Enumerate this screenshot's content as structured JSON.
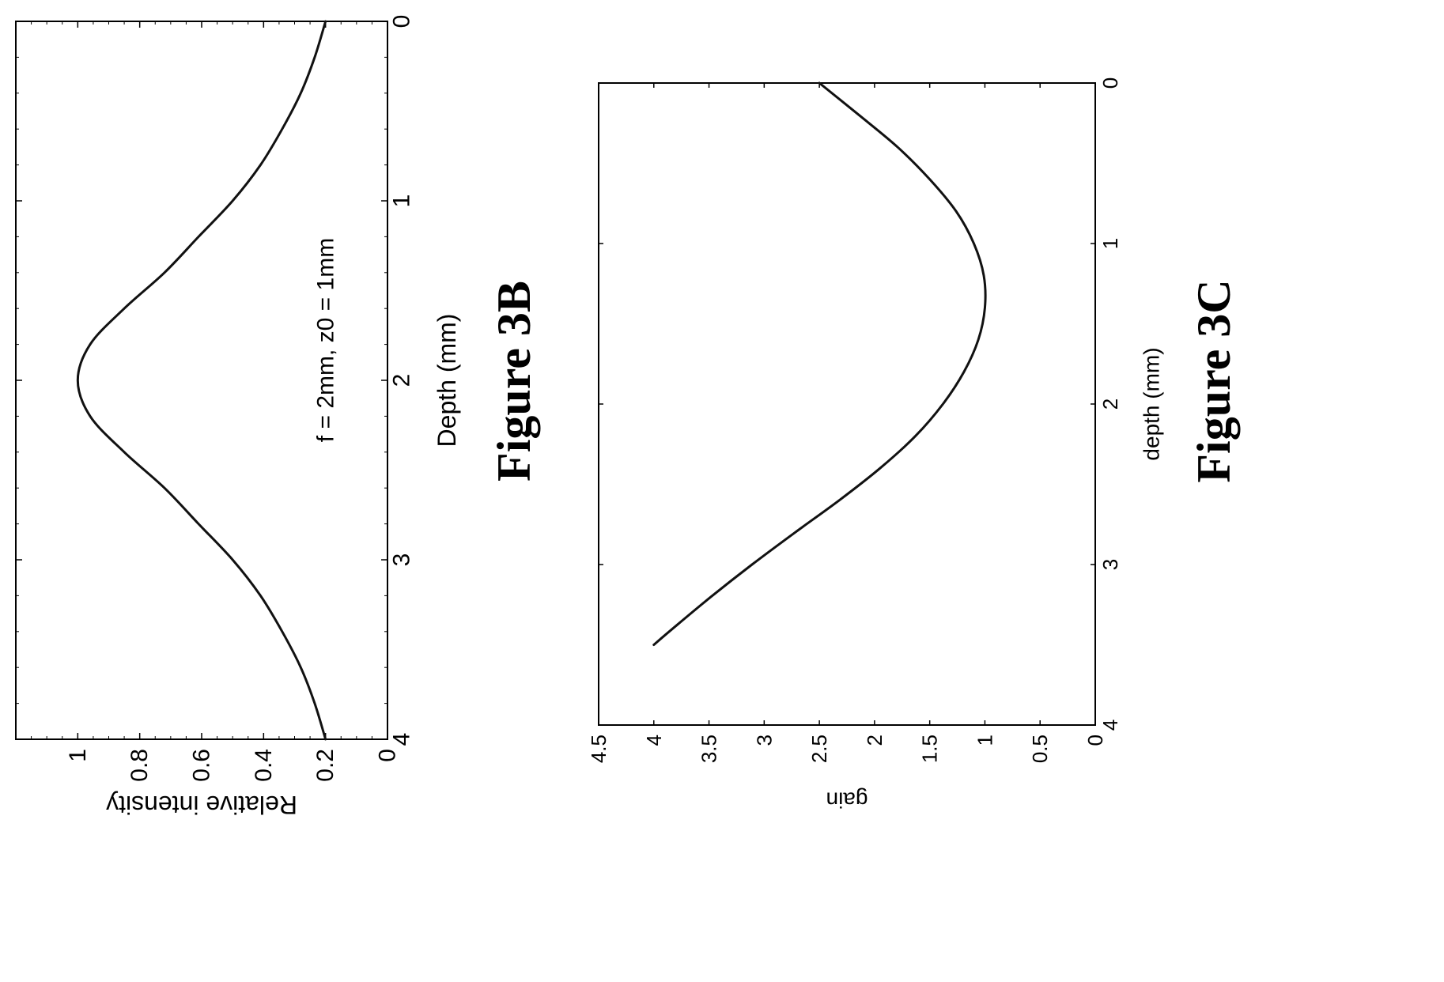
{
  "chart_data": [
    {
      "type": "line",
      "figure_label": "Figure 3B",
      "title": "",
      "xlabel": "Depth (mm)",
      "ylabel": "Relative intensity",
      "xlim": [
        0,
        4
      ],
      "ylim": [
        0,
        1.2
      ],
      "xticks": [
        0,
        1,
        2,
        3,
        4
      ],
      "yticks": [
        0,
        0.2,
        0.4,
        0.6,
        0.8,
        1
      ],
      "xtick_labels": [
        "0",
        "1",
        "2",
        "3",
        "4"
      ],
      "ytick_labels": [
        "0",
        "0.2",
        "0.4",
        "0.6",
        "0.8",
        "1"
      ],
      "annotation": "f = 2mm, z0 = 1mm",
      "grid": false,
      "orientation": "rotated 90 degrees counter-clockwise",
      "series": [
        {
          "x": [
            0,
            0.2,
            0.4,
            0.6,
            0.8,
            1.0,
            1.2,
            1.4,
            1.6,
            1.8,
            2.0,
            2.2,
            2.4,
            2.6,
            2.8,
            3.0,
            3.2,
            3.4,
            3.6,
            3.8,
            4.0
          ],
          "y": [
            0.2,
            0.235,
            0.28,
            0.34,
            0.41,
            0.5,
            0.61,
            0.72,
            0.85,
            0.96,
            1.0,
            0.96,
            0.85,
            0.72,
            0.61,
            0.5,
            0.41,
            0.34,
            0.28,
            0.235,
            0.2
          ]
        }
      ]
    },
    {
      "type": "line",
      "figure_label": "Figure 3C",
      "title": "",
      "xlabel": "depth (mm)",
      "ylabel": "gain",
      "xlim": [
        0,
        4
      ],
      "ylim": [
        0,
        4.5
      ],
      "xticks": [
        0,
        1,
        2,
        3,
        4
      ],
      "yticks": [
        0,
        0.5,
        1,
        1.5,
        2,
        2.5,
        3,
        3.5,
        4,
        4.5
      ],
      "xtick_labels": [
        "0",
        "1",
        "2",
        "3",
        "4"
      ],
      "ytick_labels": [
        "0",
        "0.5",
        "1",
        "1.5",
        "2",
        "2.5",
        "3",
        "3.5",
        "4",
        "4.5"
      ],
      "grid": false,
      "orientation": "rotated 90 degrees counter-clockwise",
      "series": [
        {
          "x": [
            0,
            0.2,
            0.4,
            0.6,
            0.8,
            1.0,
            1.2,
            1.4,
            1.6,
            1.8,
            2.0,
            2.2,
            2.4,
            2.6,
            2.8,
            3.0,
            3.2,
            3.4,
            3.5
          ],
          "y": [
            2.5,
            2.14,
            1.79,
            1.5,
            1.26,
            1.1,
            1.01,
            1.0,
            1.06,
            1.19,
            1.38,
            1.63,
            1.95,
            2.32,
            2.72,
            3.11,
            3.48,
            3.83,
            4.0
          ]
        }
      ]
    }
  ]
}
